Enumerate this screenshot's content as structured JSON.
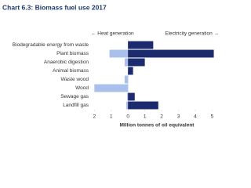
{
  "chart_data": {
    "type": "diverging-bar",
    "title": "Chart 6.3: Biomass fuel use 2017",
    "x_label": "Million tonnes of oil equivalent",
    "categories": [
      "Biodegradable energy from waste",
      "Plant biomass",
      "Anaerobic digestion",
      "Animal biomass",
      "Waste wood",
      "Wood",
      "Sewage gas",
      "Landfill gas"
    ],
    "series": [
      {
        "name": "← Heat generation",
        "color": "#a9c0ec",
        "values": [
          0,
          -1.1,
          -0.2,
          0,
          -0.2,
          -2.0,
          -0.05,
          -0.1
        ]
      },
      {
        "name": "Electricity generation →",
        "color": "#1c2a6e",
        "values": [
          1.5,
          5.1,
          1.0,
          0.3,
          0,
          0,
          0.4,
          1.8
        ]
      }
    ],
    "xlim": [
      -2.2,
      5.4
    ],
    "xticks": [
      {
        "value": -2,
        "label": "2"
      },
      {
        "value": -1,
        "label": "1"
      },
      0,
      1,
      2,
      3,
      4,
      5
    ]
  }
}
